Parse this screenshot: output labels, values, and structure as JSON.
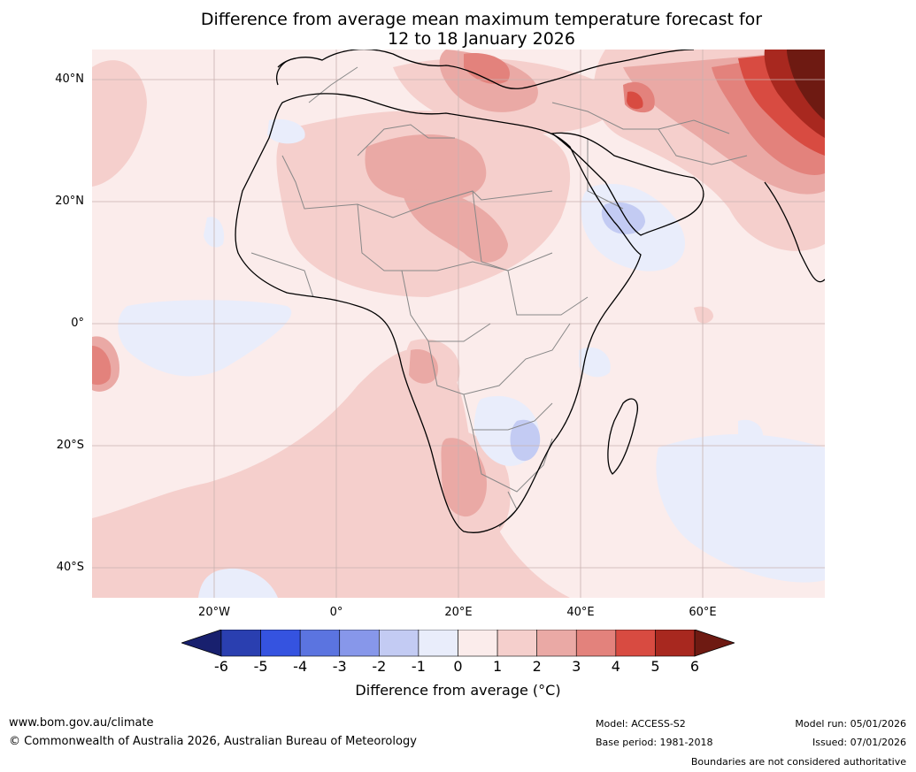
{
  "title": {
    "line1": "Difference from average mean maximum temperature forecast for",
    "line2": "12 to 18 January 2026"
  },
  "map": {
    "lat_labels": [
      {
        "value": 40,
        "text": "40°N"
      },
      {
        "value": 20,
        "text": "20°N"
      },
      {
        "value": 0,
        "text": "0°"
      },
      {
        "value": -20,
        "text": "20°S"
      },
      {
        "value": -40,
        "text": "40°S"
      }
    ],
    "lon_labels": [
      {
        "value": -20,
        "text": "20°W"
      },
      {
        "value": 0,
        "text": "0°"
      },
      {
        "value": 20,
        "text": "20°E"
      },
      {
        "value": 40,
        "text": "40°E"
      },
      {
        "value": 60,
        "text": "60°E"
      }
    ],
    "extent": {
      "lon": [
        -40,
        80
      ],
      "lat": [
        -45,
        45
      ]
    }
  },
  "colorbar": {
    "ticks": [
      "-6",
      "-5",
      "-4",
      "-3",
      "-2",
      "-1",
      "0",
      "1",
      "2",
      "3",
      "4",
      "5",
      "6"
    ],
    "colors": [
      "#18206e",
      "#2a3fb0",
      "#3553e0",
      "#5b74e0",
      "#8797ea",
      "#c3cbf3",
      "#e9edfb",
      "#fbeceb",
      "#f5cfcc",
      "#eaa9a5",
      "#e3827c",
      "#d84b41",
      "#a8281f",
      "#6e1a12"
    ],
    "label": "Difference from average (°C)"
  },
  "footer": {
    "website": "www.bom.gov.au/climate",
    "copyright": "© Commonwealth of Australia 2026, Australian Bureau of Meteorology",
    "model": "Model: ACCESS-S2",
    "base_period": "Base period: 1981-2018",
    "model_run": "Model run: 05/01/2026",
    "issued": "Issued: 07/01/2026",
    "disclaimer": "Boundaries are not considered authoritative"
  }
}
